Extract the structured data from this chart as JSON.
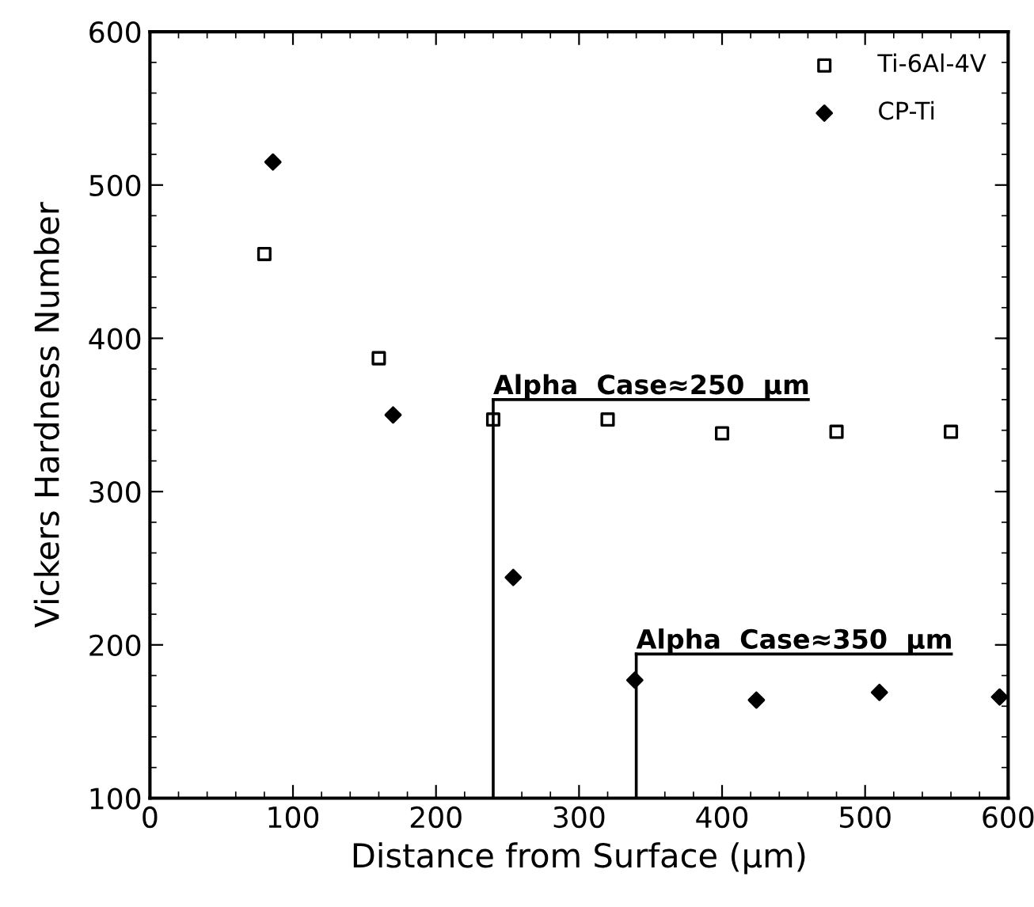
{
  "chart_data": {
    "type": "scatter",
    "xlabel": "Distance from Surface (μm)",
    "ylabel": "Vickers Hardness Number",
    "series": [
      {
        "name": "Ti-6Al-4V",
        "color": "#000000",
        "marker": "square",
        "x": [
          80,
          160,
          240,
          320,
          400,
          480,
          560
        ],
        "values": [
          455,
          387,
          347,
          347,
          338,
          339,
          339
        ]
      },
      {
        "name": "CP-Ti",
        "color": "#000000",
        "marker": "diamond",
        "x": [
          86,
          170,
          254,
          339,
          424,
          510,
          594
        ],
        "values": [
          515,
          350,
          244,
          177,
          164,
          169,
          166
        ]
      }
    ],
    "ref_lines": [
      {
        "axis": "x",
        "value": 240,
        "label": "Alpha  Case≈250  μm"
      },
      {
        "axis": "x",
        "value": 340,
        "label": "Alpha  Case≈350  μm"
      }
    ],
    "xlim": [
      0,
      600
    ],
    "xticks": [
      0,
      100,
      200,
      300,
      400,
      500,
      600
    ],
    "ylim": [
      100,
      600
    ],
    "yticks": [
      100,
      200,
      300,
      400,
      500,
      600
    ],
    "grid": false,
    "legend": "top right"
  }
}
